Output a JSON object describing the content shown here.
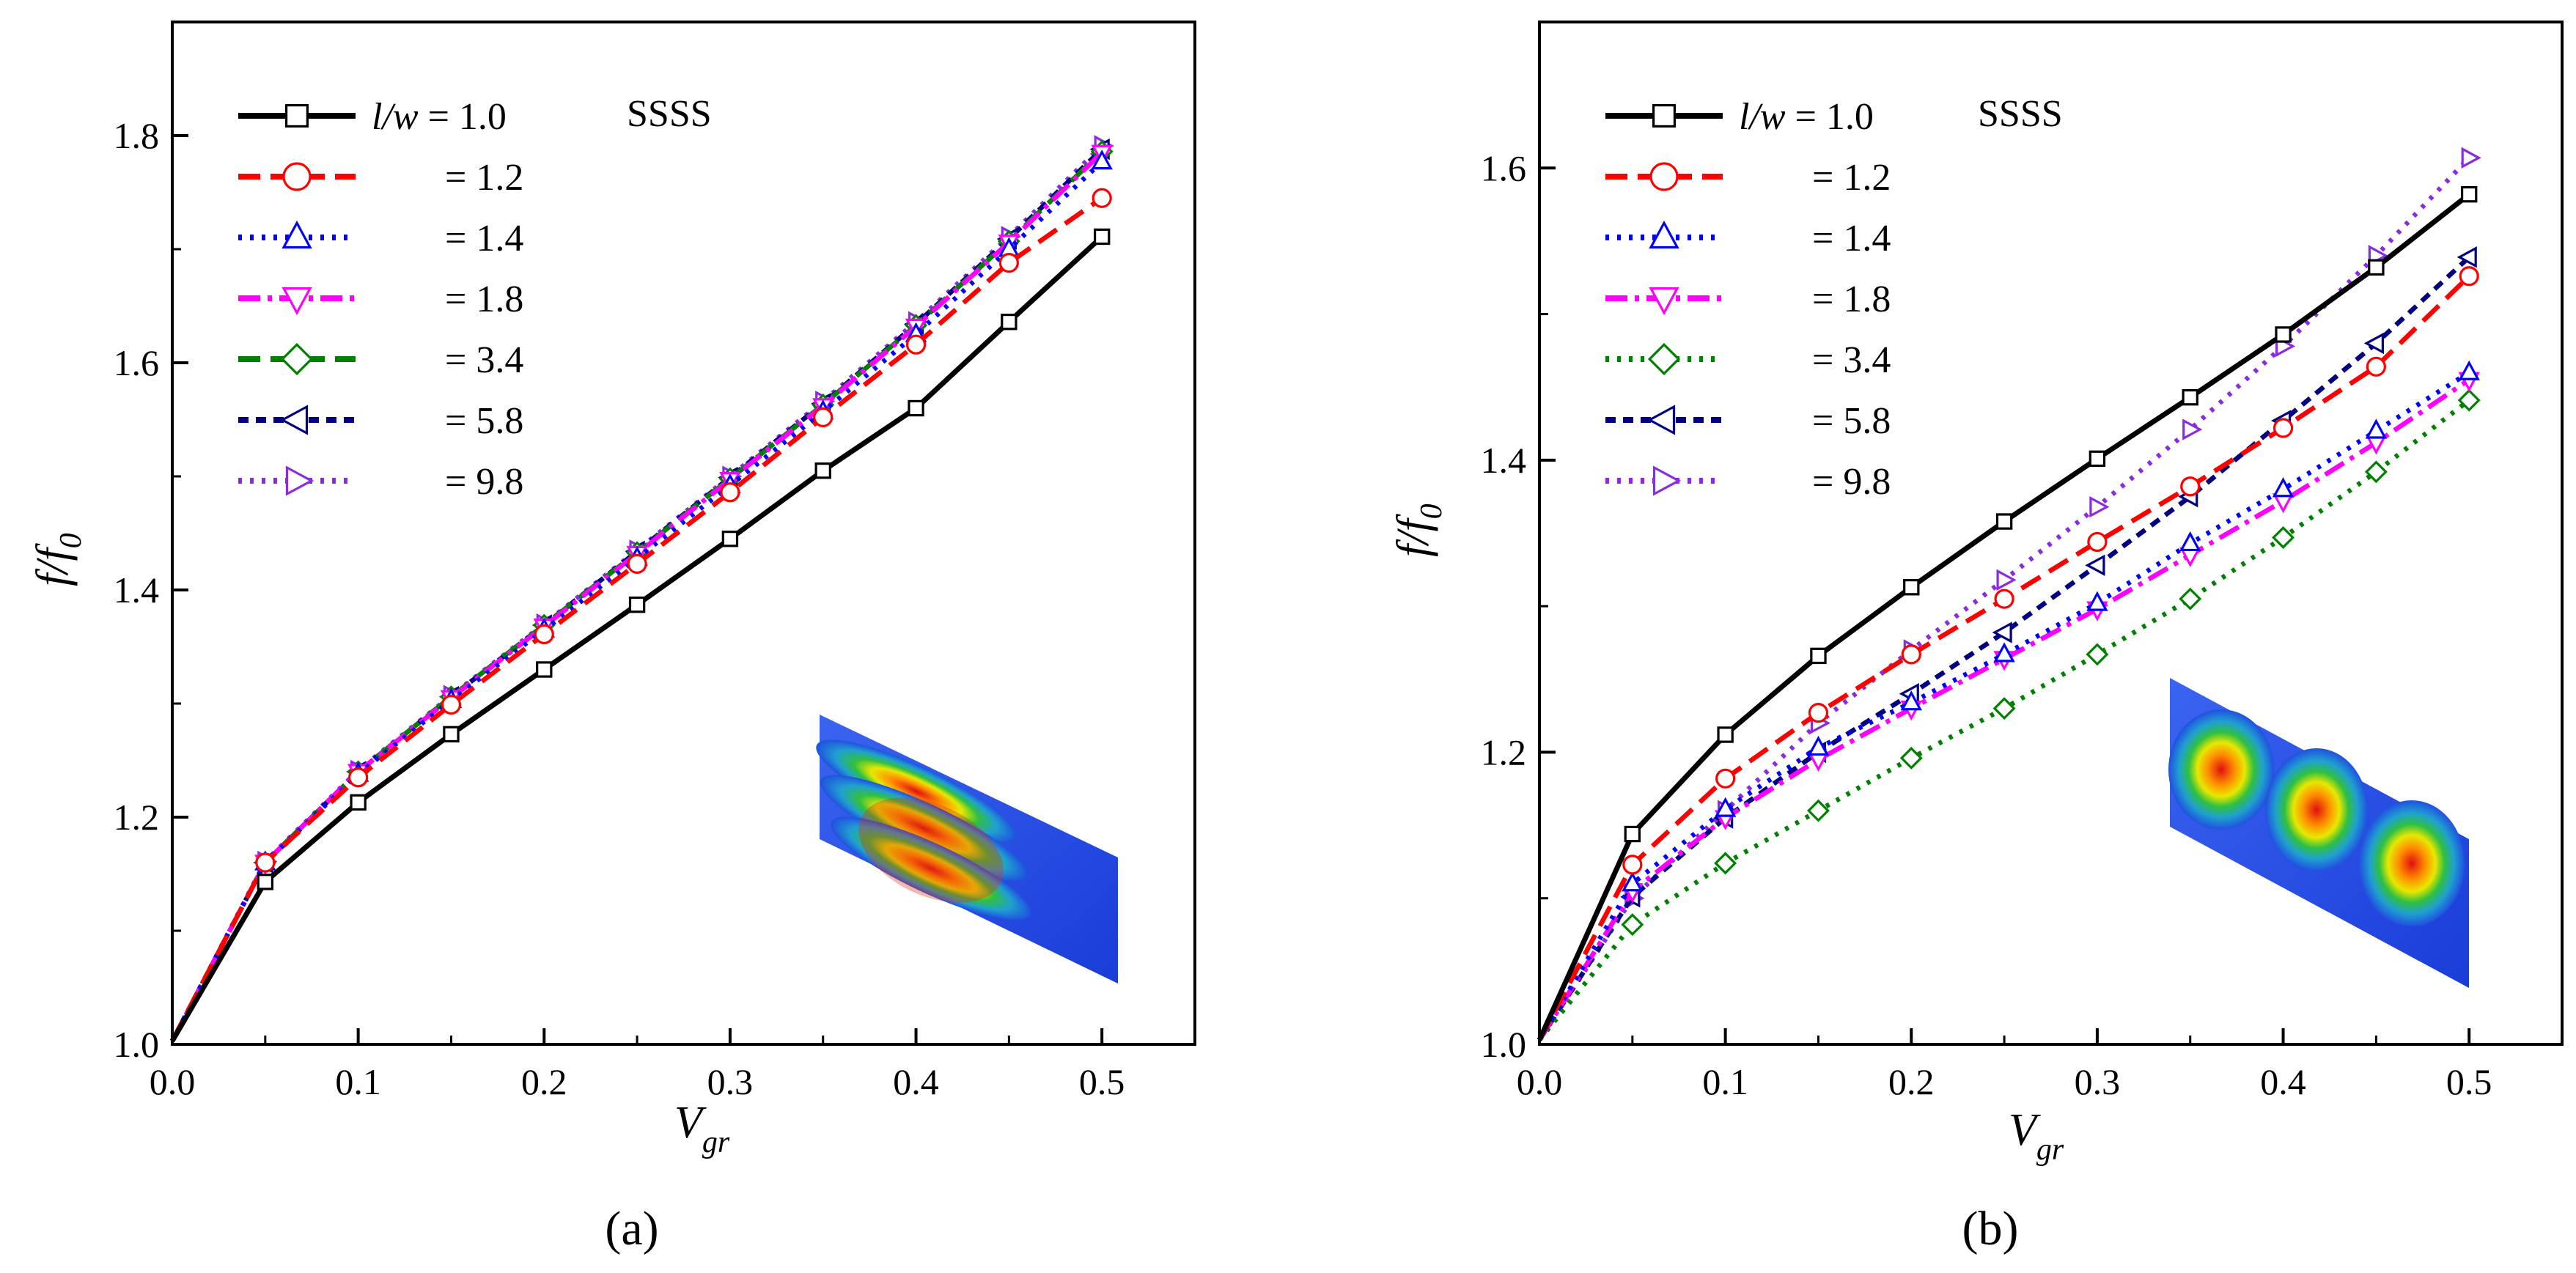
{
  "figure": {
    "panel_labels": [
      "(a)",
      "(b)"
    ]
  },
  "chart_data": [
    {
      "type": "line",
      "panel": "(a)",
      "title": "",
      "xlabel": "V",
      "xlabel_sub": "gr",
      "ylabel": "f/f",
      "ylabel_sub": "0",
      "xlim": [
        0.0,
        0.55
      ],
      "ylim": [
        1.0,
        1.9
      ],
      "xticks": [
        "0.0",
        "0.1",
        "0.2",
        "0.3",
        "0.4",
        "0.5"
      ],
      "yticks": [
        "1.0",
        "1.2",
        "1.4",
        "1.6",
        "1.8"
      ],
      "annotation": "SSSS",
      "legend_position": "top-left",
      "legend_prefix": "l/w",
      "inset": "mode shape with three longitudinal lobes",
      "x": [
        0.0,
        0.05,
        0.1,
        0.15,
        0.2,
        0.25,
        0.3,
        0.35,
        0.4,
        0.45,
        0.5
      ],
      "series": [
        {
          "name": "= 1.0",
          "color": "#000000",
          "marker": "square",
          "dash": "solid",
          "values": [
            1.003,
            1.143,
            1.213,
            1.273,
            1.33,
            1.387,
            1.445,
            1.505,
            1.56,
            1.636,
            1.711
          ]
        },
        {
          "name": "= 1.2",
          "color": "#ff0000",
          "marker": "circle",
          "dash": "dash",
          "values": [
            1.003,
            1.16,
            1.235,
            1.299,
            1.361,
            1.423,
            1.486,
            1.552,
            1.616,
            1.688,
            1.745
          ]
        },
        {
          "name": "= 1.4",
          "color": "#0000ff",
          "marker": "triangle-up",
          "dash": "dot",
          "values": [
            1.003,
            1.16,
            1.238,
            1.303,
            1.365,
            1.428,
            1.492,
            1.557,
            1.625,
            1.7,
            1.777
          ]
        },
        {
          "name": "= 1.8",
          "color": "#ff00ff",
          "marker": "triangle-down",
          "dash": "dashdot",
          "values": [
            1.003,
            1.16,
            1.24,
            1.305,
            1.368,
            1.432,
            1.497,
            1.562,
            1.632,
            1.706,
            1.785
          ]
        },
        {
          "name": "= 3.4",
          "color": "#008000",
          "marker": "diamond",
          "dash": "dash",
          "values": [
            1.003,
            1.16,
            1.24,
            1.306,
            1.369,
            1.433,
            1.498,
            1.563,
            1.633,
            1.707,
            1.786
          ]
        },
        {
          "name": "= 5.8",
          "color": "#000080",
          "marker": "triangle-left",
          "dash": "shortdash",
          "values": [
            1.003,
            1.16,
            1.24,
            1.306,
            1.369,
            1.434,
            1.499,
            1.564,
            1.634,
            1.709,
            1.788
          ]
        },
        {
          "name": "= 9.8",
          "color": "#8a2be2",
          "marker": "triangle-right",
          "dash": "dot",
          "values": [
            1.003,
            1.161,
            1.241,
            1.307,
            1.37,
            1.435,
            1.5,
            1.566,
            1.636,
            1.711,
            1.791
          ]
        }
      ]
    },
    {
      "type": "line",
      "panel": "(b)",
      "title": "",
      "xlabel": "V",
      "xlabel_sub": "gr",
      "ylabel": "f/f",
      "ylabel_sub": "0",
      "xlim": [
        0.0,
        0.55
      ],
      "ylim": [
        1.0,
        1.7
      ],
      "xticks": [
        "0.0",
        "0.1",
        "0.2",
        "0.3",
        "0.4",
        "0.5"
      ],
      "yticks": [
        "1.0",
        "1.2",
        "1.4",
        "1.6"
      ],
      "annotation": "SSSS",
      "legend_position": "top-left",
      "legend_prefix": "l/w",
      "inset": "mode shape with three transverse lobes",
      "x": [
        0.0,
        0.05,
        0.1,
        0.15,
        0.2,
        0.25,
        0.3,
        0.35,
        0.4,
        0.45,
        0.5
      ],
      "series": [
        {
          "name": "= 1.0",
          "color": "#000000",
          "marker": "square",
          "dash": "solid",
          "values": [
            1.003,
            1.144,
            1.212,
            1.266,
            1.313,
            1.358,
            1.401,
            1.443,
            1.486,
            1.532,
            1.582
          ]
        },
        {
          "name": "= 1.2",
          "color": "#ff0000",
          "marker": "circle",
          "dash": "dash",
          "values": [
            1.003,
            1.123,
            1.182,
            1.227,
            1.267,
            1.305,
            1.344,
            1.382,
            1.422,
            1.464,
            1.526
          ]
        },
        {
          "name": "= 1.4",
          "color": "#0000ff",
          "marker": "triangle-up",
          "dash": "dot",
          "values": [
            1.003,
            1.11,
            1.161,
            1.203,
            1.234,
            1.267,
            1.302,
            1.343,
            1.38,
            1.42,
            1.46
          ]
        },
        {
          "name": "= 1.8",
          "color": "#ff00ff",
          "marker": "triangle-down",
          "dash": "dashdot",
          "values": [
            1.003,
            1.105,
            1.155,
            1.195,
            1.23,
            1.264,
            1.298,
            1.335,
            1.372,
            1.412,
            1.455
          ]
        },
        {
          "name": "= 3.4",
          "color": "#008000",
          "marker": "diamond",
          "dash": "dot",
          "values": [
            1.003,
            1.082,
            1.124,
            1.16,
            1.196,
            1.23,
            1.267,
            1.305,
            1.347,
            1.392,
            1.441
          ]
        },
        {
          "name": "= 5.8",
          "color": "#000080",
          "marker": "triangle-left",
          "dash": "shortdash",
          "values": [
            1.003,
            1.101,
            1.155,
            1.2,
            1.24,
            1.282,
            1.328,
            1.375,
            1.427,
            1.48,
            1.539
          ]
        },
        {
          "name": "= 9.8",
          "color": "#8a2be2",
          "marker": "triangle-right",
          "dash": "dot",
          "values": [
            1.003,
            1.1,
            1.16,
            1.22,
            1.27,
            1.318,
            1.368,
            1.421,
            1.478,
            1.54,
            1.607
          ]
        }
      ]
    }
  ]
}
